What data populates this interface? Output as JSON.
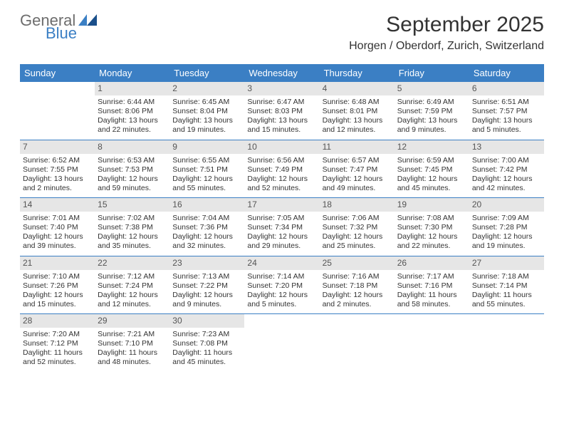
{
  "brand": {
    "name_top": "General",
    "name_bottom": "Blue",
    "top_color": "#6d6d6d",
    "bottom_color": "#3b7fc4"
  },
  "title": "September 2025",
  "location": "Horgen / Oberdorf, Zurich, Switzerland",
  "colors": {
    "header_bg": "#3b7fc4",
    "daynum_bg": "#e6e6e6",
    "text": "#333333",
    "border": "#3b7fc4",
    "bg": "#ffffff"
  },
  "typography": {
    "title_size": 30,
    "location_size": 16,
    "dayheader_size": 13,
    "body_size": 10.5
  },
  "day_headers": [
    "Sunday",
    "Monday",
    "Tuesday",
    "Wednesday",
    "Thursday",
    "Friday",
    "Saturday"
  ],
  "weeks": [
    [
      {
        "empty": true
      },
      {
        "num": "1",
        "sunrise": "Sunrise: 6:44 AM",
        "sunset": "Sunset: 8:06 PM",
        "day1": "Daylight: 13 hours",
        "day2": "and 22 minutes."
      },
      {
        "num": "2",
        "sunrise": "Sunrise: 6:45 AM",
        "sunset": "Sunset: 8:04 PM",
        "day1": "Daylight: 13 hours",
        "day2": "and 19 minutes."
      },
      {
        "num": "3",
        "sunrise": "Sunrise: 6:47 AM",
        "sunset": "Sunset: 8:03 PM",
        "day1": "Daylight: 13 hours",
        "day2": "and 15 minutes."
      },
      {
        "num": "4",
        "sunrise": "Sunrise: 6:48 AM",
        "sunset": "Sunset: 8:01 PM",
        "day1": "Daylight: 13 hours",
        "day2": "and 12 minutes."
      },
      {
        "num": "5",
        "sunrise": "Sunrise: 6:49 AM",
        "sunset": "Sunset: 7:59 PM",
        "day1": "Daylight: 13 hours",
        "day2": "and 9 minutes."
      },
      {
        "num": "6",
        "sunrise": "Sunrise: 6:51 AM",
        "sunset": "Sunset: 7:57 PM",
        "day1": "Daylight: 13 hours",
        "day2": "and 5 minutes."
      }
    ],
    [
      {
        "num": "7",
        "sunrise": "Sunrise: 6:52 AM",
        "sunset": "Sunset: 7:55 PM",
        "day1": "Daylight: 13 hours",
        "day2": "and 2 minutes."
      },
      {
        "num": "8",
        "sunrise": "Sunrise: 6:53 AM",
        "sunset": "Sunset: 7:53 PM",
        "day1": "Daylight: 12 hours",
        "day2": "and 59 minutes."
      },
      {
        "num": "9",
        "sunrise": "Sunrise: 6:55 AM",
        "sunset": "Sunset: 7:51 PM",
        "day1": "Daylight: 12 hours",
        "day2": "and 55 minutes."
      },
      {
        "num": "10",
        "sunrise": "Sunrise: 6:56 AM",
        "sunset": "Sunset: 7:49 PM",
        "day1": "Daylight: 12 hours",
        "day2": "and 52 minutes."
      },
      {
        "num": "11",
        "sunrise": "Sunrise: 6:57 AM",
        "sunset": "Sunset: 7:47 PM",
        "day1": "Daylight: 12 hours",
        "day2": "and 49 minutes."
      },
      {
        "num": "12",
        "sunrise": "Sunrise: 6:59 AM",
        "sunset": "Sunset: 7:45 PM",
        "day1": "Daylight: 12 hours",
        "day2": "and 45 minutes."
      },
      {
        "num": "13",
        "sunrise": "Sunrise: 7:00 AM",
        "sunset": "Sunset: 7:42 PM",
        "day1": "Daylight: 12 hours",
        "day2": "and 42 minutes."
      }
    ],
    [
      {
        "num": "14",
        "sunrise": "Sunrise: 7:01 AM",
        "sunset": "Sunset: 7:40 PM",
        "day1": "Daylight: 12 hours",
        "day2": "and 39 minutes."
      },
      {
        "num": "15",
        "sunrise": "Sunrise: 7:02 AM",
        "sunset": "Sunset: 7:38 PM",
        "day1": "Daylight: 12 hours",
        "day2": "and 35 minutes."
      },
      {
        "num": "16",
        "sunrise": "Sunrise: 7:04 AM",
        "sunset": "Sunset: 7:36 PM",
        "day1": "Daylight: 12 hours",
        "day2": "and 32 minutes."
      },
      {
        "num": "17",
        "sunrise": "Sunrise: 7:05 AM",
        "sunset": "Sunset: 7:34 PM",
        "day1": "Daylight: 12 hours",
        "day2": "and 29 minutes."
      },
      {
        "num": "18",
        "sunrise": "Sunrise: 7:06 AM",
        "sunset": "Sunset: 7:32 PM",
        "day1": "Daylight: 12 hours",
        "day2": "and 25 minutes."
      },
      {
        "num": "19",
        "sunrise": "Sunrise: 7:08 AM",
        "sunset": "Sunset: 7:30 PM",
        "day1": "Daylight: 12 hours",
        "day2": "and 22 minutes."
      },
      {
        "num": "20",
        "sunrise": "Sunrise: 7:09 AM",
        "sunset": "Sunset: 7:28 PM",
        "day1": "Daylight: 12 hours",
        "day2": "and 19 minutes."
      }
    ],
    [
      {
        "num": "21",
        "sunrise": "Sunrise: 7:10 AM",
        "sunset": "Sunset: 7:26 PM",
        "day1": "Daylight: 12 hours",
        "day2": "and 15 minutes."
      },
      {
        "num": "22",
        "sunrise": "Sunrise: 7:12 AM",
        "sunset": "Sunset: 7:24 PM",
        "day1": "Daylight: 12 hours",
        "day2": "and 12 minutes."
      },
      {
        "num": "23",
        "sunrise": "Sunrise: 7:13 AM",
        "sunset": "Sunset: 7:22 PM",
        "day1": "Daylight: 12 hours",
        "day2": "and 9 minutes."
      },
      {
        "num": "24",
        "sunrise": "Sunrise: 7:14 AM",
        "sunset": "Sunset: 7:20 PM",
        "day1": "Daylight: 12 hours",
        "day2": "and 5 minutes."
      },
      {
        "num": "25",
        "sunrise": "Sunrise: 7:16 AM",
        "sunset": "Sunset: 7:18 PM",
        "day1": "Daylight: 12 hours",
        "day2": "and 2 minutes."
      },
      {
        "num": "26",
        "sunrise": "Sunrise: 7:17 AM",
        "sunset": "Sunset: 7:16 PM",
        "day1": "Daylight: 11 hours",
        "day2": "and 58 minutes."
      },
      {
        "num": "27",
        "sunrise": "Sunrise: 7:18 AM",
        "sunset": "Sunset: 7:14 PM",
        "day1": "Daylight: 11 hours",
        "day2": "and 55 minutes."
      }
    ],
    [
      {
        "num": "28",
        "sunrise": "Sunrise: 7:20 AM",
        "sunset": "Sunset: 7:12 PM",
        "day1": "Daylight: 11 hours",
        "day2": "and 52 minutes."
      },
      {
        "num": "29",
        "sunrise": "Sunrise: 7:21 AM",
        "sunset": "Sunset: 7:10 PM",
        "day1": "Daylight: 11 hours",
        "day2": "and 48 minutes."
      },
      {
        "num": "30",
        "sunrise": "Sunrise: 7:23 AM",
        "sunset": "Sunset: 7:08 PM",
        "day1": "Daylight: 11 hours",
        "day2": "and 45 minutes."
      },
      {
        "empty": true
      },
      {
        "empty": true
      },
      {
        "empty": true
      },
      {
        "empty": true
      }
    ]
  ]
}
